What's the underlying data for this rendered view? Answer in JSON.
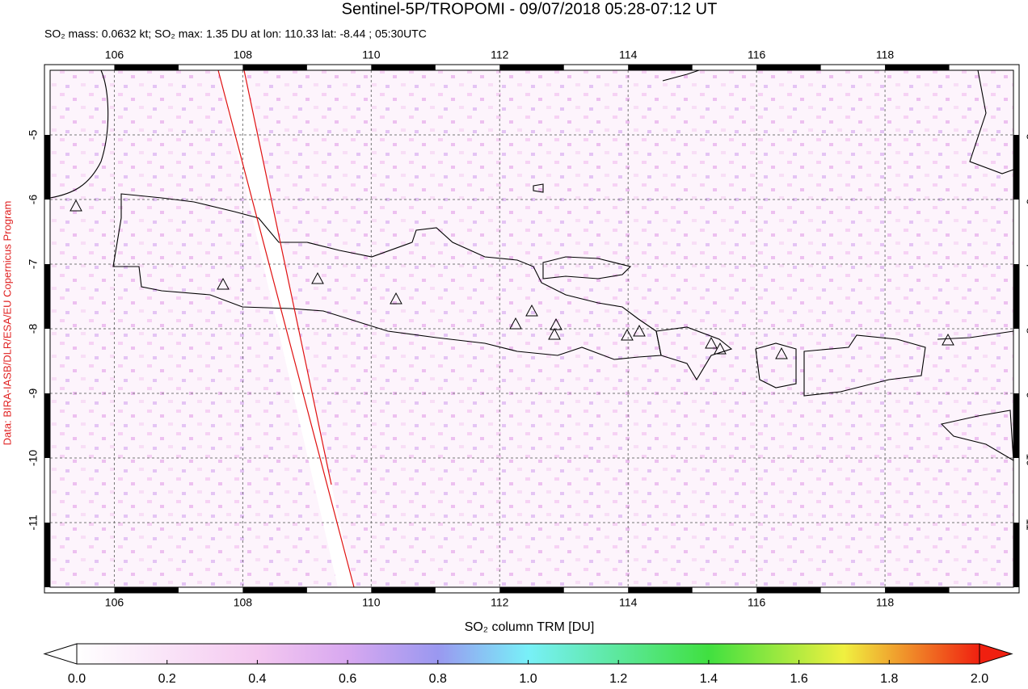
{
  "title": "Sentinel-5P/TROPOMI - 09/07/2018 05:28-07:12 UT",
  "subtitle": "SO₂ mass: 0.0632 kt; SO₂ max: 1.35 DU at lon: 110.33 lat: -8.44 ; 05:30UTC",
  "credit": "Data: BIRA-IASB/DLR/ESA/EU Copernicus Program",
  "map": {
    "xlim": [
      105,
      120
    ],
    "ylim": [
      -12,
      -4
    ],
    "xticks": [
      106,
      108,
      110,
      112,
      114,
      116,
      118
    ],
    "yticks": [
      -5,
      -6,
      -7,
      -8,
      -9,
      -10,
      -11
    ]
  },
  "colorbar": {
    "label": "SO₂ column TRM [DU]",
    "range": [
      0,
      2
    ],
    "ticks": [
      {
        "value": 0,
        "label": "0.0"
      },
      {
        "value": 0.2,
        "label": "0.2"
      },
      {
        "value": 0.4,
        "label": "0.4"
      },
      {
        "value": 0.6,
        "label": "0.6"
      },
      {
        "value": 0.8,
        "label": "0.8"
      },
      {
        "value": 1,
        "label": "1.0"
      },
      {
        "value": 1.2,
        "label": "1.2"
      },
      {
        "value": 1.4,
        "label": "1.4"
      },
      {
        "value": 1.6,
        "label": "1.6"
      },
      {
        "value": 1.8,
        "label": "1.8"
      },
      {
        "value": 2,
        "label": "2.0"
      }
    ]
  }
}
